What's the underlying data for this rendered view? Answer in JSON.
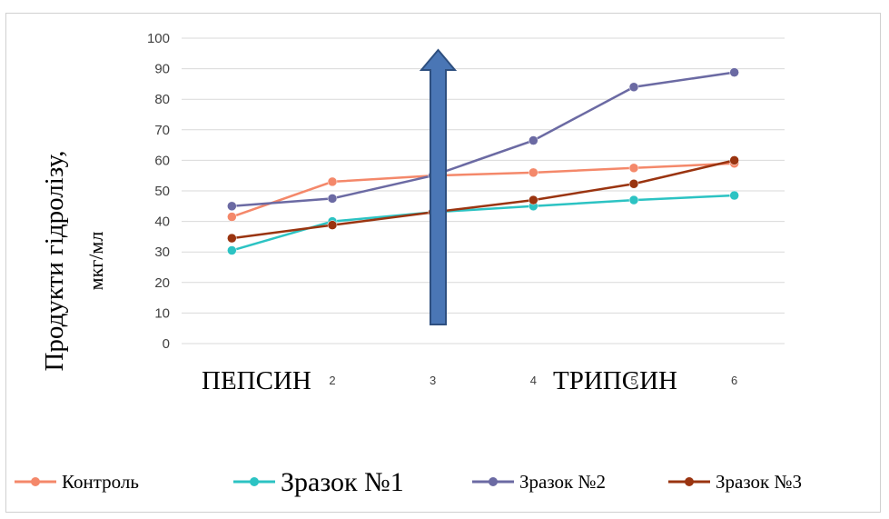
{
  "chart_data": {
    "type": "line",
    "categories": [
      "1",
      "2",
      "3",
      "4",
      "5",
      "6"
    ],
    "ylim": [
      0,
      100
    ],
    "yticks": [
      0,
      10,
      20,
      30,
      40,
      50,
      60,
      70,
      80,
      90,
      100
    ],
    "grid": true,
    "legend_position": "bottom",
    "ylabel_main": "Продукти гідролізу,",
    "ylabel_unit": "мкг/мл",
    "annotations": [
      "ПЕПСИН",
      "ТРИПСИН"
    ],
    "series": [
      {
        "name": "Контроль",
        "color": "#F4886A",
        "values": [
          41.5,
          53,
          55,
          56,
          57.5,
          59
        ]
      },
      {
        "name": "Зразок №1",
        "color": "#2CC3C3",
        "values": [
          30.5,
          40,
          43,
          45,
          47,
          48.5
        ]
      },
      {
        "name": "Зразок №2",
        "color": "#6B6AA3",
        "values": [
          45,
          47.5,
          55,
          66.5,
          84,
          88.8
        ]
      },
      {
        "name": "Зразок №3",
        "color": "#9A3410",
        "values": [
          34.5,
          38.8,
          43,
          47,
          52.3,
          60
        ]
      }
    ],
    "arrow_color": "#4A76B5"
  }
}
